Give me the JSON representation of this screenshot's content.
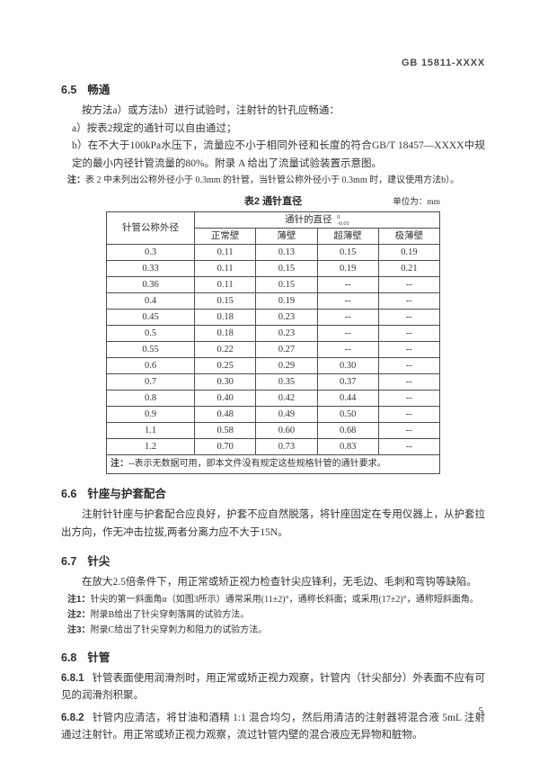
{
  "header": {
    "doc_code": "GB 15811-XXXX"
  },
  "s65": {
    "number": "6.5",
    "title": "畅通",
    "intro": "按方法a）或方法b）进行试验时，注射针的针孔应畅通：",
    "item_a": "a）按表2规定的通针可以自由通过；",
    "item_b": "b）在不大于100kPa水压下，流量应不小于相同外径和长度的符合GB/T 18457—XXXX中规定的最小内径针管流量的80%。附录 A 给出了流量试验装置示意图。",
    "note": {
      "label": "注：",
      "text": "表 2 中未列出公称外径小于 0.3mm 的针管，当针管公称外径小于 0.3mm 时，建议使用方法b）。"
    }
  },
  "table2": {
    "title": "表2 通针直径",
    "unit": "单位为：mm",
    "col1_header": "针管公称外径",
    "merged_header": "通针的直径",
    "tolerance_sup": "0",
    "tolerance_sub": "-0.01",
    "sub_headers": [
      "正常壁",
      "薄壁",
      "超薄壁",
      "极薄壁"
    ],
    "rows": [
      [
        "0.3",
        "0.11",
        "0.13",
        "0.15",
        "0.19"
      ],
      [
        "0.33",
        "0.11",
        "0.15",
        "0.19",
        "0.21"
      ],
      [
        "0.36",
        "0.11",
        "0.15",
        "--",
        "--"
      ],
      [
        "0.4",
        "0.15",
        "0.19",
        "--",
        "--"
      ],
      [
        "0.45",
        "0.18",
        "0.23",
        "--",
        "--"
      ],
      [
        "0.5",
        "0.18",
        "0.23",
        "--",
        "--"
      ],
      [
        "0.55",
        "0.22",
        "0.27",
        "--",
        "--"
      ],
      [
        "0.6",
        "0.25",
        "0.29",
        "0.30",
        "--"
      ],
      [
        "0.7",
        "0.30",
        "0.35",
        "0.37",
        "--"
      ],
      [
        "0.8",
        "0.40",
        "0.42",
        "0.44",
        "--"
      ],
      [
        "0.9",
        "0.48",
        "0.49",
        "0.50",
        "--"
      ],
      [
        "1.1",
        "0.58",
        "0.60",
        "0.68",
        "--"
      ],
      [
        "1.2",
        "0.70",
        "0.73",
        "0.83",
        "--"
      ]
    ],
    "note": {
      "label": "注：",
      "text": "--表示无数据可用，即本文件没有规定这些规格针管的通针要求。"
    }
  },
  "s66": {
    "number": "6.6",
    "title": "针座与护套配合",
    "body": "注射针针座与护套配合应良好，护套不应自然脱落，将针座固定在专用仪器上，从护套拉出方向，作无冲击拉拔,两者分离力应不大于15N。"
  },
  "s67": {
    "number": "6.7",
    "title": "针尖",
    "body": "在放大2.5倍条件下，用正常或矫正视力检查针尖应锋利，无毛边、毛刺和弯钩等缺陷。",
    "notes": [
      {
        "label": "注1：",
        "text": "针尖的第一斜面角α（如图3所示）通常采用(11±2)°，通称长斜面；或采用(17±2)°，通称短斜面角。"
      },
      {
        "label": "注2：",
        "text": "附录B给出了针尖穿刺落屑的试验方法。"
      },
      {
        "label": "注3：",
        "text": "附录C给出了针尖穿刺力和阻力的试验方法。"
      }
    ]
  },
  "s68": {
    "number": "6.8",
    "title": "针管",
    "clauses": [
      {
        "number": "6.8.1",
        "text": "针管表面使用润滑剂时，用正常或矫正视力观察，针管内（针尖部分）外表面不应有可见的润滑剂积聚。"
      },
      {
        "number": "6.8.2",
        "text": "针管内应清洁，将甘油和酒精 1:1 混合均匀，然后用清洁的注射器将混合液 5mL 注射通过注射针。用正常或矫正视力观察，流过针管内壁的混合液应无异物和脏物。"
      }
    ]
  },
  "footer": {
    "page_number": "5"
  }
}
